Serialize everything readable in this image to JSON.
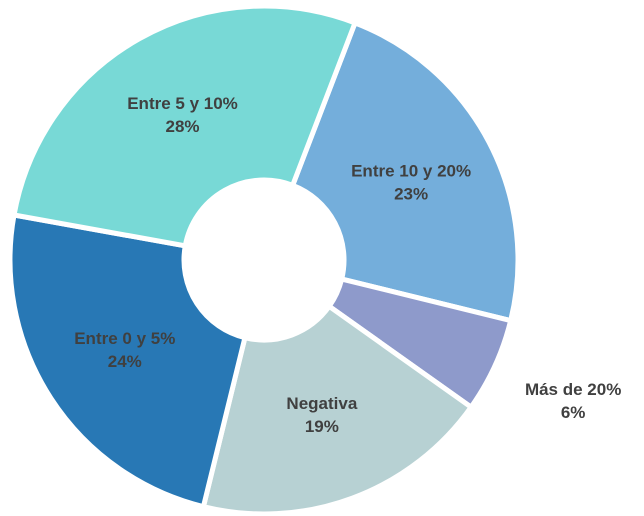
{
  "chart_data": {
    "type": "donut",
    "categories": [
      "Entre 10 y 20%",
      "Más de 20%",
      "Negativa",
      "Entre 0 y 5%",
      "Entre 5 y 10%"
    ],
    "values": [
      23,
      6,
      19,
      24,
      28
    ],
    "value_labels": [
      "23%",
      "6%",
      "19%",
      "24%",
      "28%"
    ],
    "colors": [
      "#74aedb",
      "#8e9acb",
      "#b7d1d3",
      "#2878b5",
      "#78d9d6"
    ]
  }
}
